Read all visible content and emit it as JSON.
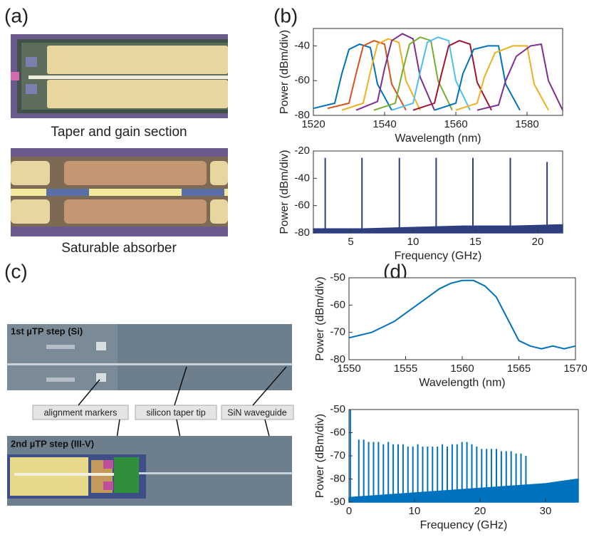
{
  "panel_labels": [
    "(a)",
    "(b)",
    "(c)",
    "(d)"
  ],
  "panel_a": {
    "captions": [
      "Taper and gain section",
      "Saturable absorber"
    ]
  },
  "panel_c": {
    "steps": [
      "1st µTP step (Si)",
      "2nd µTP step (III-V)"
    ],
    "annotations": [
      "alignment markers",
      "silicon taper tip",
      "SiN waveguide"
    ]
  },
  "chart_data": [
    {
      "type": "line",
      "xlabel": "Wavelength (nm)",
      "ylabel": "Power (dBm/div)",
      "xlim": [
        1520,
        1590
      ],
      "ylim": [
        -80,
        -30
      ],
      "xticks": [
        1520,
        1540,
        1560,
        1580
      ],
      "yticks": [
        -80,
        -60,
        -40
      ],
      "series": [
        {
          "color": "#0072bd",
          "x": [
            1520,
            1526,
            1528,
            1530,
            1533,
            1536,
            1538,
            1542
          ],
          "values": [
            -76,
            -73,
            -56,
            -42,
            -39,
            -41,
            -62,
            -77
          ]
        },
        {
          "color": "#d95319",
          "x": [
            1524,
            1530,
            1532,
            1534,
            1537,
            1540,
            1542,
            1546
          ],
          "values": [
            -76,
            -73,
            -56,
            -40,
            -37,
            -39,
            -62,
            -77
          ]
        },
        {
          "color": "#edb120",
          "x": [
            1528,
            1534,
            1536,
            1538,
            1541,
            1544,
            1546,
            1550
          ],
          "values": [
            -77,
            -73,
            -55,
            -39,
            -36,
            -38,
            -60,
            -77
          ]
        },
        {
          "color": "#7e2f8e",
          "x": [
            1532,
            1538,
            1540,
            1542,
            1545,
            1548,
            1550,
            1554
          ],
          "values": [
            -77,
            -72,
            -53,
            -37,
            -33,
            -36,
            -58,
            -77
          ]
        },
        {
          "color": "#77ac30",
          "x": [
            1537,
            1543,
            1545,
            1547,
            1550,
            1553,
            1555,
            1559
          ],
          "values": [
            -77,
            -73,
            -55,
            -39,
            -35,
            -37,
            -60,
            -77
          ]
        },
        {
          "color": "#4dbeee",
          "x": [
            1542,
            1548,
            1550,
            1552,
            1555,
            1558,
            1560,
            1564
          ],
          "values": [
            -77,
            -73,
            -55,
            -38,
            -35,
            -37,
            -60,
            -77
          ]
        },
        {
          "color": "#a2142f",
          "x": [
            1548,
            1554,
            1556,
            1558,
            1561,
            1564,
            1566,
            1570
          ],
          "values": [
            -77,
            -73,
            -56,
            -40,
            -37,
            -39,
            -61,
            -77
          ]
        },
        {
          "color": "#0072bd",
          "x": [
            1554,
            1560,
            1562,
            1565,
            1569,
            1572,
            1574,
            1578
          ],
          "values": [
            -77,
            -73,
            -56,
            -42,
            -40,
            -40,
            -62,
            -77
          ]
        },
        {
          "color": "#edb120",
          "x": [
            1560,
            1566,
            1568,
            1571,
            1576,
            1580,
            1582,
            1586
          ],
          "values": [
            -77,
            -73,
            -58,
            -44,
            -40,
            -40,
            -62,
            -77
          ]
        },
        {
          "color": "#7e2f8e",
          "x": [
            1566,
            1572,
            1574,
            1577,
            1581,
            1584,
            1586,
            1590
          ],
          "values": [
            -77,
            -74,
            -60,
            -46,
            -40,
            -39,
            -60,
            -77
          ]
        }
      ]
    },
    {
      "type": "stem",
      "xlabel": "Frequency (GHz)",
      "ylabel": "Power (dBm/div)",
      "xlim": [
        2,
        22
      ],
      "ylim": [
        -80,
        -20
      ],
      "xticks": [
        5,
        10,
        15,
        20
      ],
      "yticks": [
        -80,
        -60,
        -40,
        -20
      ],
      "color": "#2e3f7f",
      "x": [
        2.95,
        5.9,
        8.9,
        11.85,
        14.8,
        17.8,
        20.75
      ],
      "values": [
        -25,
        -25,
        -25,
        -25,
        -25,
        -25,
        -28
      ],
      "floor": {
        "x": [
          2,
          6,
          10,
          14,
          18,
          22
        ],
        "values": [
          -77,
          -77,
          -76,
          -75,
          -75,
          -74
        ]
      }
    },
    {
      "type": "line",
      "xlabel": "Wavelength (nm)",
      "ylabel": "Power (dBm/div)",
      "xlim": [
        1550,
        1570
      ],
      "ylim": [
        -80,
        -50
      ],
      "xticks": [
        1550,
        1555,
        1560,
        1565,
        1570
      ],
      "yticks": [
        -80,
        -70,
        -60,
        -50
      ],
      "series": [
        {
          "color": "#0072bd",
          "x": [
            1550,
            1551,
            1552,
            1553,
            1554,
            1555,
            1556,
            1557,
            1558,
            1559,
            1560,
            1561,
            1562,
            1563,
            1564,
            1565,
            1566,
            1567,
            1568,
            1569,
            1570
          ],
          "values": [
            -72,
            -71,
            -70,
            -68,
            -66,
            -63,
            -60,
            -57,
            -54,
            -52,
            -51,
            -51,
            -53,
            -57,
            -65,
            -73,
            -75,
            -76,
            -75,
            -76,
            -75
          ]
        }
      ]
    },
    {
      "type": "stem",
      "xlabel": "Frequency (GHz)",
      "ylabel": "Power (dBm/div)",
      "xlim": [
        0,
        35
      ],
      "ylim": [
        -90,
        -50
      ],
      "xticks": [
        0,
        10,
        20,
        30
      ],
      "yticks": [
        -90,
        -80,
        -70,
        -60,
        -50
      ],
      "color": "#0072bd",
      "x": [
        0.2,
        1.5,
        2.25,
        3,
        3.75,
        4.5,
        5.25,
        6,
        6.75,
        7.5,
        8.25,
        9,
        9.75,
        10.5,
        11.25,
        12,
        12.75,
        13.5,
        14.25,
        15,
        15.75,
        16.5,
        17.25,
        18,
        18.75,
        19.5,
        20.25,
        21,
        21.75,
        22.5,
        23.25,
        24,
        24.75,
        25.5,
        26.25,
        27
      ],
      "values": [
        -50,
        -63,
        -63,
        -64,
        -64,
        -64,
        -65,
        -64,
        -65,
        -65,
        -65,
        -66,
        -66,
        -65,
        -66,
        -66,
        -66,
        -66,
        -65,
        -66,
        -65,
        -65,
        -64,
        -64,
        -65,
        -66,
        -67,
        -67,
        -67,
        -67,
        -68,
        -68,
        -68,
        -69,
        -69,
        -70
      ],
      "floor": {
        "x": [
          0,
          5,
          10,
          15,
          20,
          25,
          30,
          35
        ],
        "values": [
          -88,
          -87,
          -86,
          -85,
          -84,
          -83,
          -82,
          -80
        ]
      }
    }
  ]
}
